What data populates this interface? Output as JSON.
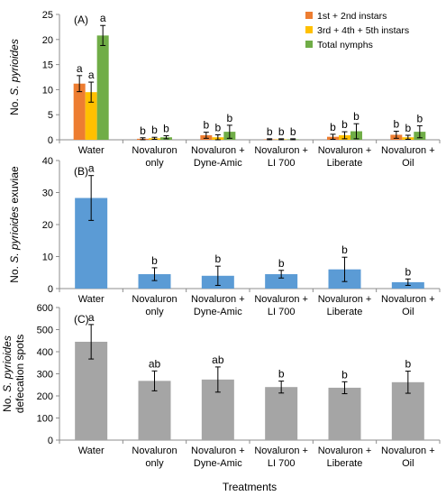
{
  "figure": {
    "xlabel": "Treatments",
    "xtick_labels": [
      [
        "Water"
      ],
      [
        "Novaluron",
        "only"
      ],
      [
        "Novaluron +",
        "Dyne-Amic"
      ],
      [
        "Novaluron +",
        "LI 700"
      ],
      [
        "Novaluron +",
        "Liberate"
      ],
      [
        "Novaluron +",
        "Oil"
      ]
    ]
  },
  "chart_data": [
    {
      "type": "bar",
      "panel_label": "(A)",
      "ylabel_parts": [
        "No. ",
        "S. pyrioides"
      ],
      "ylim": [
        0,
        25
      ],
      "yticks": [
        0,
        5,
        10,
        15,
        20,
        25
      ],
      "legend_position": "top-right",
      "categories": [
        "Water",
        "Novaluron only",
        "Novaluron + Dyne-Amic",
        "Novaluron + LI 700",
        "Novaluron + Liberate",
        "Novaluron + Oil"
      ],
      "series": [
        {
          "name": "1st + 2nd instars",
          "color": "#ED7D31",
          "values": [
            11.2,
            0.2,
            0.9,
            0.1,
            0.6,
            1.0
          ],
          "errors": [
            1.6,
            0.2,
            0.6,
            0.1,
            0.5,
            0.7
          ],
          "letters": [
            "a",
            "b",
            "b",
            "b",
            "b",
            "b"
          ]
        },
        {
          "name": "3rd + 4th + 5th instars",
          "color": "#FFC000",
          "values": [
            9.5,
            0.3,
            0.5,
            0.1,
            0.9,
            0.5
          ],
          "errors": [
            2.0,
            0.2,
            0.5,
            0.1,
            0.7,
            0.4
          ],
          "letters": [
            "a",
            "b",
            "b",
            "b",
            "b",
            "b"
          ]
        },
        {
          "name": "Total nymphs",
          "color": "#70AD47",
          "values": [
            20.8,
            0.5,
            1.6,
            0.1,
            1.7,
            1.6
          ],
          "errors": [
            2.0,
            0.3,
            1.3,
            0.1,
            1.5,
            1.2
          ],
          "letters": [
            "a",
            "b",
            "b",
            "b",
            "b",
            "b"
          ]
        }
      ]
    },
    {
      "type": "bar",
      "panel_label": "(B)",
      "ylabel_parts": [
        "No. ",
        "S. pyrioides",
        " exuviae"
      ],
      "ylim": [
        0,
        40
      ],
      "yticks": [
        0,
        10,
        20,
        30,
        40
      ],
      "categories": [
        "Water",
        "Novaluron only",
        "Novaluron + Dyne-Amic",
        "Novaluron + LI 700",
        "Novaluron + Liberate",
        "Novaluron + Oil"
      ],
      "series": [
        {
          "color": "#5B9BD5",
          "values": [
            28.3,
            4.5,
            4.0,
            4.5,
            6.0,
            2.0
          ],
          "errors": [
            7.0,
            2.0,
            3.0,
            1.2,
            3.8,
            1.0
          ],
          "letters": [
            "a",
            "b",
            "b",
            "b",
            "b",
            "b"
          ]
        }
      ]
    },
    {
      "type": "bar",
      "panel_label": "(C)",
      "ylabel_parts": [
        "No. ",
        "S. pyrioides"
      ],
      "ylabel_line2": "defecation spots",
      "ylim": [
        0,
        600
      ],
      "yticks": [
        0,
        100,
        200,
        300,
        400,
        500,
        600
      ],
      "categories": [
        "Water",
        "Novaluron only",
        "Novaluron + Dyne-Amic",
        "Novaluron + LI 700",
        "Novaluron + Liberate",
        "Novaluron + Oil"
      ],
      "series": [
        {
          "color": "#A5A5A5",
          "values": [
            445,
            268,
            274,
            240,
            237,
            262
          ],
          "errors": [
            78,
            45,
            57,
            27,
            27,
            50
          ],
          "letters": [
            "a",
            "ab",
            "ab",
            "b",
            "b",
            "b"
          ]
        }
      ]
    }
  ]
}
